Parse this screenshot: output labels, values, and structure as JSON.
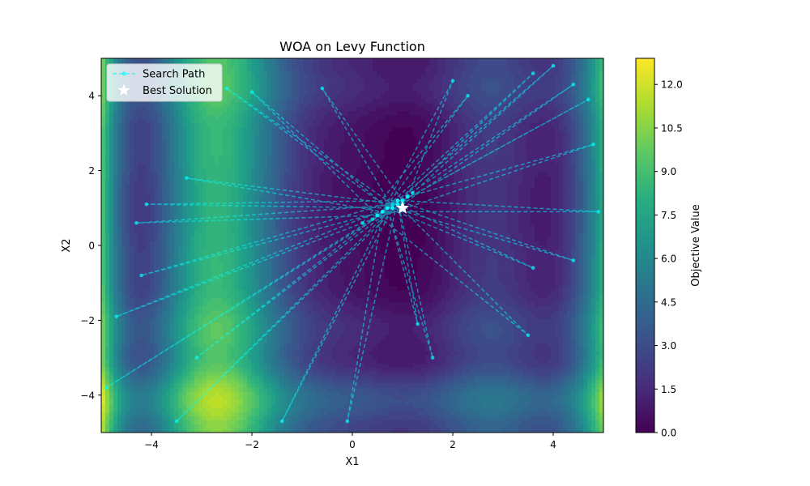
{
  "chart_data": {
    "type": "contour",
    "title": "WOA on Levy Function",
    "xlabel": "X1",
    "ylabel": "X2",
    "xlim": [
      -5,
      5
    ],
    "ylim": [
      -5,
      5
    ],
    "xticks": [
      -4,
      -2,
      0,
      2,
      4
    ],
    "yticks": [
      -4,
      -2,
      0,
      2,
      4
    ],
    "xtick_labels": [
      "−4",
      "−2",
      "0",
      "2",
      "4"
    ],
    "ytick_labels": [
      "−4",
      "−2",
      "0",
      "2",
      "4"
    ],
    "colormap": "viridis",
    "grid": false,
    "colorbar": {
      "label": "Objective Value",
      "range": [
        0,
        12.9
      ],
      "ticks": [
        0.0,
        1.5,
        3.0,
        4.5,
        6.0,
        7.5,
        9.0,
        10.5,
        12.0
      ],
      "tick_labels": [
        "0.0",
        "1.5",
        "3.0",
        "4.5",
        "6.0",
        "7.5",
        "9.0",
        "10.5",
        "12.0"
      ]
    },
    "legend": {
      "placement": "top-left",
      "entries": [
        {
          "label": "Search Path",
          "style": "dashed line with dot markers",
          "color": "#00ffff"
        },
        {
          "label": "Best Solution",
          "style": "star marker",
          "color": "#ffffff"
        }
      ]
    },
    "series": [
      {
        "name": "Search Path",
        "color": "#00ffff",
        "points": [
          [
            0.2,
            0.6
          ],
          [
            2.3,
            4.0
          ],
          [
            0.6,
            0.9
          ],
          [
            4.4,
            4.3
          ],
          [
            1.0,
            1.1
          ],
          [
            -4.3,
            0.6
          ],
          [
            0.5,
            0.8
          ],
          [
            3.5,
            -2.4
          ],
          [
            0.9,
            1.1
          ],
          [
            -4.7,
            -1.9
          ],
          [
            0.4,
            0.7
          ],
          [
            4.8,
            2.7
          ],
          [
            1.1,
            1.3
          ],
          [
            -3.5,
            -4.7
          ],
          [
            0.8,
            1.0
          ],
          [
            3.6,
            4.6
          ],
          [
            0.5,
            0.8
          ],
          [
            -2.0,
            4.1
          ],
          [
            0.7,
            1.0
          ],
          [
            1.6,
            -3.0
          ],
          [
            0.9,
            1.2
          ],
          [
            -4.2,
            -0.8
          ],
          [
            0.6,
            0.9
          ],
          [
            4.9,
            0.9
          ],
          [
            1.0,
            1.2
          ],
          [
            -0.6,
            4.2
          ],
          [
            0.8,
            1.0
          ],
          [
            -1.4,
            -4.7
          ],
          [
            0.7,
            1.0
          ],
          [
            3.6,
            -0.6
          ],
          [
            0.9,
            1.1
          ],
          [
            -3.3,
            1.8
          ],
          [
            0.6,
            0.9
          ],
          [
            2.0,
            4.4
          ],
          [
            1.1,
            1.3
          ],
          [
            -4.9,
            -3.8
          ],
          [
            0.8,
            1.0
          ],
          [
            4.4,
            -0.4
          ],
          [
            0.9,
            1.2
          ],
          [
            -0.1,
            -4.7
          ],
          [
            0.6,
            0.9
          ],
          [
            4.7,
            3.9
          ],
          [
            1.0,
            1.2
          ],
          [
            -4.1,
            1.1
          ],
          [
            0.7,
            1.0
          ],
          [
            1.3,
            -2.1
          ],
          [
            0.9,
            1.2
          ],
          [
            4.0,
            4.8
          ],
          [
            1.2,
            1.4
          ],
          [
            -3.1,
            -3.0
          ],
          [
            0.8,
            1.1
          ],
          [
            -2.5,
            4.2
          ],
          [
            0.7,
            1.0
          ],
          [
            0.9,
            1.2
          ]
        ]
      },
      {
        "name": "Best Solution",
        "x": 1.0,
        "y": 1.0
      }
    ]
  }
}
